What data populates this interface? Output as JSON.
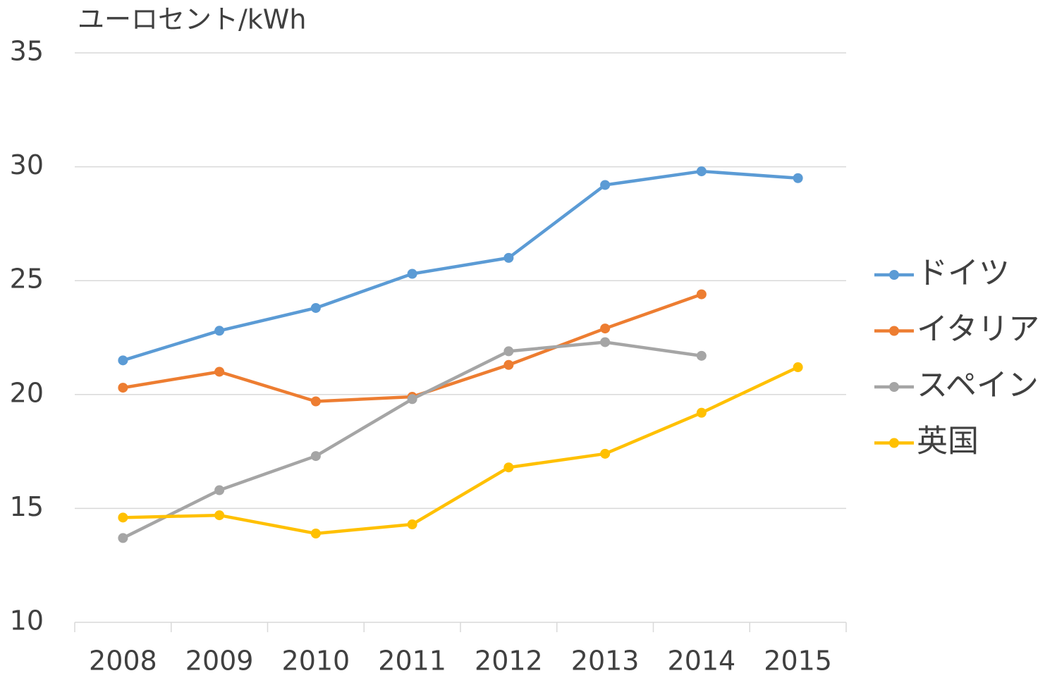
{
  "chart_data": {
    "type": "line",
    "title": "ユーロセント/kWh",
    "categories": [
      "2008",
      "2009",
      "2010",
      "2011",
      "2012",
      "2013",
      "2014",
      "2015"
    ],
    "series": [
      {
        "name": "ドイツ",
        "color": "#5b9bd5",
        "values": [
          21.5,
          22.8,
          23.8,
          25.3,
          26.0,
          29.2,
          29.8,
          29.5
        ]
      },
      {
        "name": "イタリア",
        "color": "#ed7d31",
        "values": [
          20.3,
          21.0,
          19.7,
          19.9,
          21.3,
          22.9,
          24.4,
          null
        ]
      },
      {
        "name": "スペイン",
        "color": "#a5a5a5",
        "values": [
          13.7,
          15.8,
          17.3,
          19.8,
          21.9,
          22.3,
          21.7,
          null
        ]
      },
      {
        "name": "英国",
        "color": "#ffc000",
        "values": [
          14.6,
          14.7,
          13.9,
          14.3,
          16.8,
          17.4,
          19.2,
          21.2
        ]
      }
    ],
    "ylim": [
      10,
      35
    ],
    "yticks": [
      10,
      15,
      20,
      25,
      30,
      35
    ],
    "grid": true,
    "legend": "right"
  }
}
